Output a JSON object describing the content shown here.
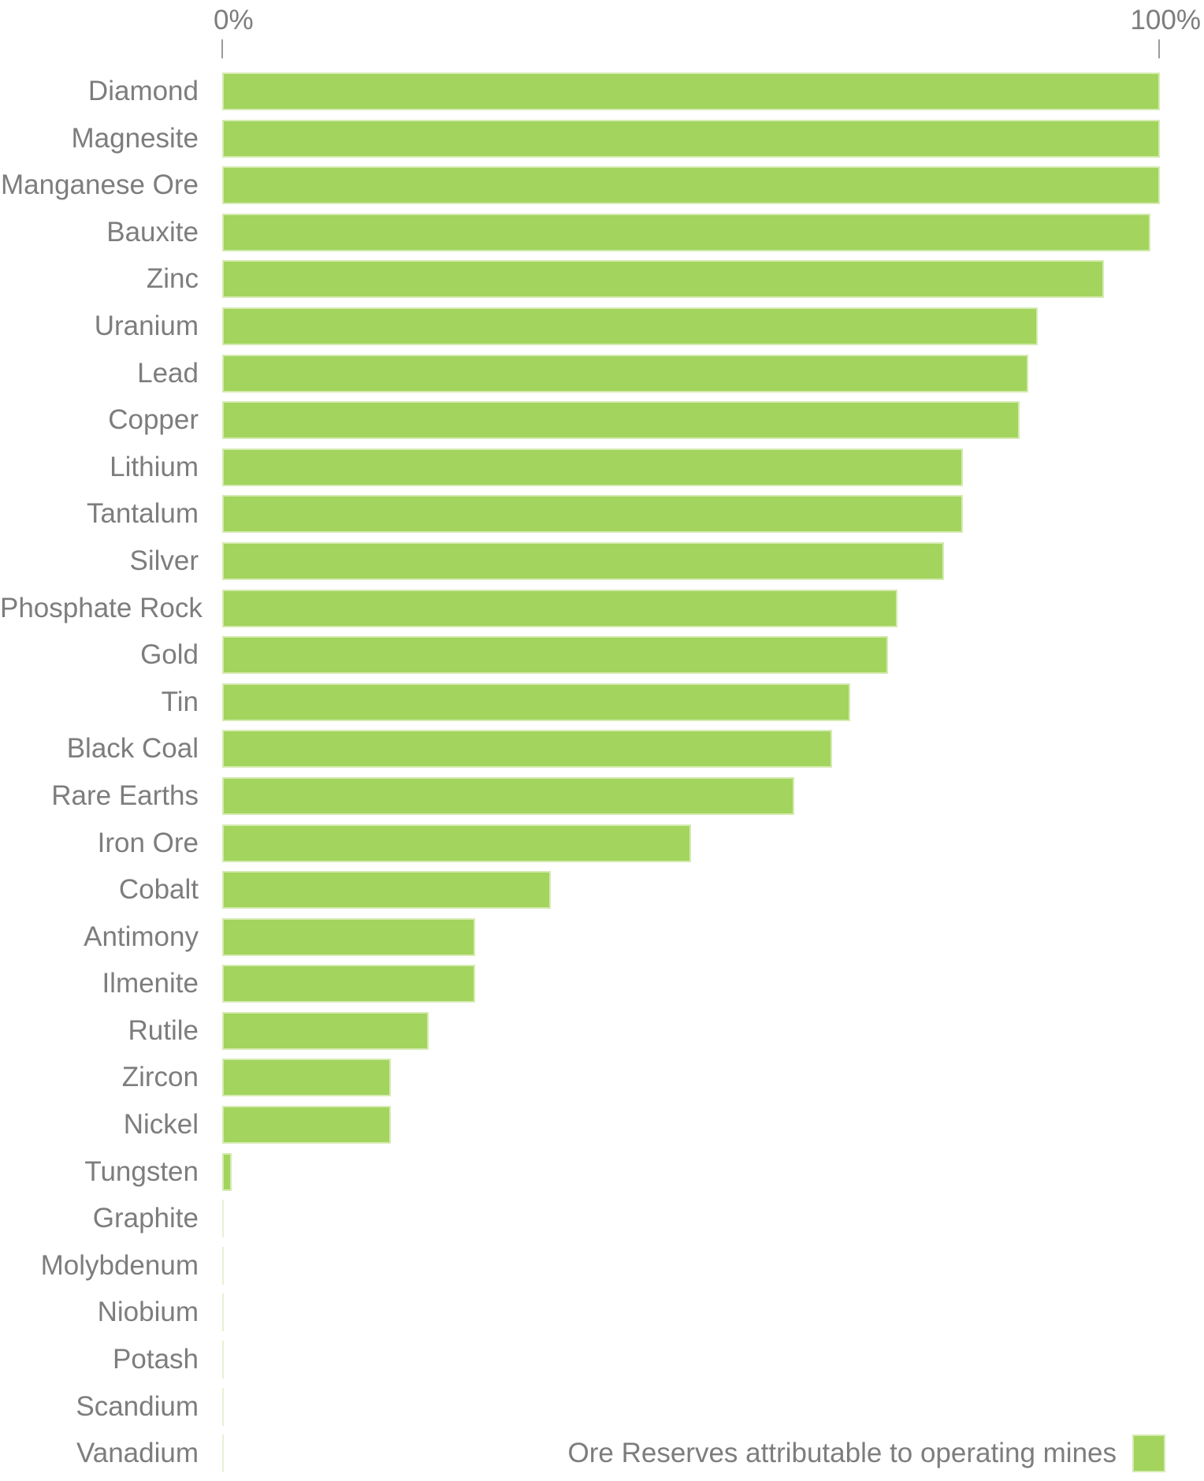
{
  "axis": {
    "min_label": "0%",
    "max_label": "100%"
  },
  "legend": {
    "label": "Ore Reserves attributable to operating mines"
  },
  "colors": {
    "bar": "#a2d45e",
    "bar_edge": "#d5ebb0",
    "zero_line": "#e6f2d4",
    "text": "#7d7d7d",
    "tick": "#9b9b9b",
    "background": "#ffffff"
  },
  "chart_data": {
    "type": "bar",
    "orientation": "horizontal",
    "title": "",
    "xlabel": "",
    "ylabel": "",
    "xlim": [
      0,
      100
    ],
    "x_tick_labels": [
      "0%",
      "100%"
    ],
    "grid": false,
    "legend_entries": [
      "Ore Reserves attributable to operating mines"
    ],
    "legend_position": "bottom-right",
    "categories": [
      "Diamond",
      "Magnesite",
      "Manganese Ore",
      "Bauxite",
      "Zinc",
      "Uranium",
      "Lead",
      "Copper",
      "Lithium",
      "Tantalum",
      "Silver",
      "Phosphate Rock",
      "Gold",
      "Tin",
      "Black Coal",
      "Rare Earths",
      "Iron Ore",
      "Cobalt",
      "Antimony",
      "Ilmenite",
      "Rutile",
      "Zircon",
      "Nickel",
      "Tungsten",
      "Graphite",
      "Molybdenum",
      "Niobium",
      "Potash",
      "Scandium",
      "Vanadium"
    ],
    "values": [
      100,
      100,
      100,
      99,
      94,
      87,
      86,
      85,
      79,
      79,
      77,
      72,
      71,
      67,
      65,
      61,
      50,
      35,
      27,
      27,
      22,
      18,
      18,
      1,
      0,
      0,
      0,
      0,
      0,
      0
    ],
    "unit": "%"
  }
}
